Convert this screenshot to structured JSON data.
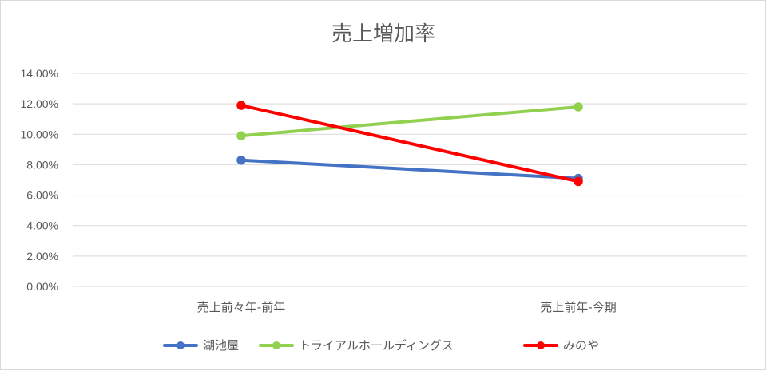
{
  "chart_data": {
    "type": "line",
    "title": "売上増加率",
    "categories": [
      "売上前々年-前年",
      "売上前年-今期"
    ],
    "series": [
      {
        "name": "湖池屋",
        "values": [
          0.083,
          0.071
        ],
        "color": "#4472c4"
      },
      {
        "name": "トライアルホールディングス",
        "values": [
          0.099,
          0.118
        ],
        "color": "#92d050"
      },
      {
        "name": "みのや",
        "values": [
          0.119,
          0.069
        ],
        "color": "#ff0000"
      }
    ],
    "ylim": [
      0,
      0.14
    ],
    "yticks": [
      "0.00%",
      "2.00%",
      "4.00%",
      "6.00%",
      "8.00%",
      "10.00%",
      "12.00%",
      "14.00%"
    ],
    "grid": true,
    "legend_position": "bottom"
  }
}
